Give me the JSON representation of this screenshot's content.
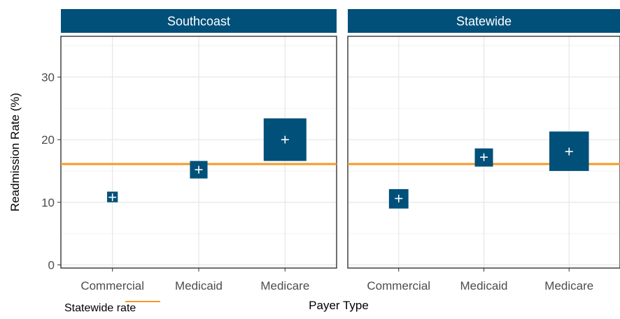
{
  "chart_data": {
    "type": "scatter",
    "facets": [
      {
        "title": "Southcoast",
        "categories": [
          "Commercial",
          "Medicaid",
          "Medicare"
        ],
        "values": [
          10.8,
          15.2,
          20.0
        ],
        "ci_low": [
          10.0,
          13.8,
          16.6
        ],
        "ci_high": [
          11.7,
          16.6,
          23.4
        ]
      },
      {
        "title": "Statewide",
        "categories": [
          "Commercial",
          "Medicaid",
          "Medicare"
        ],
        "values": [
          10.6,
          17.2,
          18.1
        ],
        "ci_low": [
          9.0,
          15.7,
          15.0
        ],
        "ci_high": [
          12.1,
          18.6,
          21.3
        ]
      }
    ],
    "reference_line": {
      "label": "Statewide rate",
      "value": 16.1
    },
    "xlabel": "Payer Type",
    "ylabel": "Readmission Rate (%)",
    "ylim": [
      -0.5,
      36.5
    ],
    "yticks": [
      0,
      10,
      20,
      30
    ],
    "grid": true,
    "legend_position": "bottom-left",
    "colors": {
      "marker": "#01507a",
      "strip": "#01507a",
      "strip_text": "#ffffff",
      "reference_line": "#f39a25",
      "grid_major": "#e6e6e6",
      "grid_minor": "#f2f2f2",
      "axis_text": "#4d4d4d",
      "panel_border": "#333333"
    }
  }
}
